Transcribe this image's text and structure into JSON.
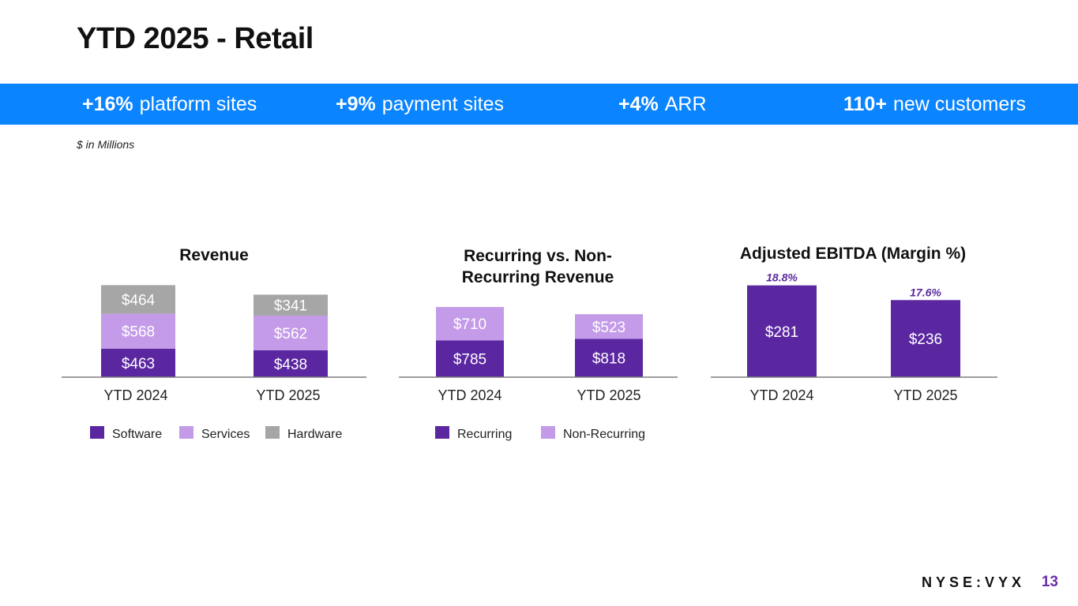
{
  "title": "YTD 2025 - Retail",
  "banner": [
    {
      "value": "+16%",
      "label": "platform sites"
    },
    {
      "value": "+9%",
      "label": "payment sites"
    },
    {
      "value": "+4%",
      "label": "ARR"
    },
    {
      "value": "110+",
      "label": "new customers"
    }
  ],
  "note": "$ in Millions",
  "footer": {
    "ticker": "NYSE:VYX",
    "page": "13"
  },
  "colors": {
    "banner": "#0a84ff",
    "software": "#5b27a1",
    "services": "#c49be8",
    "hardware": "#a6a6a6",
    "margin_text": "#5b2a9d"
  },
  "chart_data": [
    {
      "type": "bar",
      "stacked": true,
      "title": "Revenue",
      "categories": [
        "YTD 2024",
        "YTD 2025"
      ],
      "series": [
        {
          "name": "Software",
          "values": [
            463,
            438
          ],
          "labels": [
            "$463",
            "$438"
          ]
        },
        {
          "name": "Services",
          "values": [
            568,
            562
          ],
          "labels": [
            "$568",
            "$562"
          ]
        },
        {
          "name": "Hardware",
          "values": [
            464,
            341
          ],
          "labels": [
            "$464",
            "$341"
          ]
        }
      ],
      "legend": "bottom"
    },
    {
      "type": "bar",
      "stacked": true,
      "title": "Recurring vs. Non-Recurring Revenue",
      "title_lines": [
        "Recurring vs. Non-",
        "Recurring Revenue"
      ],
      "categories": [
        "YTD 2024",
        "YTD 2025"
      ],
      "series": [
        {
          "name": "Recurring",
          "values": [
            785,
            818
          ],
          "labels": [
            "$785",
            "$818"
          ]
        },
        {
          "name": "Non-Recurring",
          "values": [
            710,
            523
          ],
          "labels": [
            "$710",
            "$523"
          ]
        }
      ],
      "legend": "bottom"
    },
    {
      "type": "bar",
      "stacked": false,
      "title": "Adjusted EBITDA (Margin %)",
      "categories": [
        "YTD 2024",
        "YTD 2025"
      ],
      "series": [
        {
          "name": "Adjusted EBITDA",
          "values": [
            281,
            236
          ],
          "labels": [
            "$281",
            "$236"
          ]
        }
      ],
      "margins": [
        "18.8%",
        "17.6%"
      ]
    }
  ]
}
